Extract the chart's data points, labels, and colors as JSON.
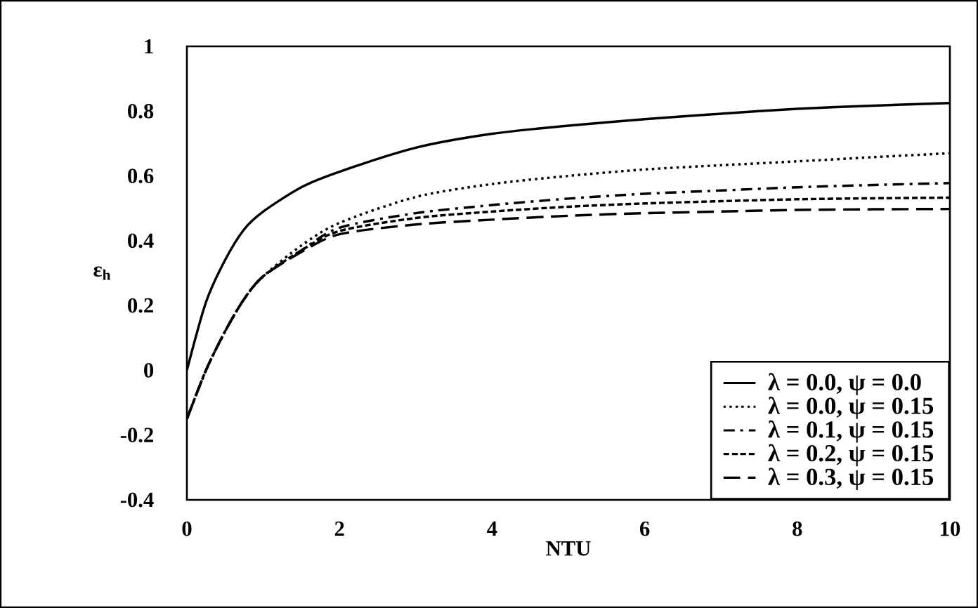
{
  "chart_data": {
    "type": "line",
    "xlabel": "NTU",
    "ylabel": "ε$_{h}$",
    "xlim": [
      0,
      10
    ],
    "ylim": [
      -0.4,
      1
    ],
    "xticks": [
      0,
      2,
      4,
      6,
      8,
      10
    ],
    "yticks": [
      -0.4,
      -0.2,
      0,
      0.2,
      0.4,
      0.6,
      0.8,
      1
    ],
    "legend": "bottom right",
    "grid": false,
    "marker": "none",
    "x": [
      0,
      0.25,
      0.5,
      0.75,
      1,
      1.5,
      2,
      3,
      4,
      5,
      6,
      7,
      8,
      9,
      10
    ],
    "series": [
      {
        "name": "λ = 0.0, ψ = 0.0",
        "color": "#000000",
        "line_style": "solid",
        "values": [
          0,
          0.21,
          0.34,
          0.435,
          0.49,
          0.565,
          0.613,
          0.687,
          0.73,
          0.755,
          0.775,
          0.792,
          0.807,
          0.817,
          0.825
        ]
      },
      {
        "name": "λ = 0.0, ψ = 0.15",
        "color": "#000000",
        "line_style": "dotted",
        "values": [
          -0.15,
          0.0,
          0.12,
          0.22,
          0.29,
          0.385,
          0.455,
          0.535,
          0.575,
          0.6,
          0.62,
          0.633,
          0.645,
          0.658,
          0.67
        ]
      },
      {
        "name": "λ = 0.1, ψ = 0.15",
        "color": "#000000",
        "line_style": "dashdot",
        "values": [
          -0.15,
          0.0,
          0.12,
          0.22,
          0.29,
          0.37,
          0.44,
          0.485,
          0.51,
          0.53,
          0.545,
          0.555,
          0.565,
          0.572,
          0.578
        ]
      },
      {
        "name": "λ = 0.2, ψ = 0.15",
        "color": "#000000",
        "line_style": "dashed",
        "values": [
          -0.15,
          0.0,
          0.12,
          0.22,
          0.29,
          0.37,
          0.43,
          0.47,
          0.49,
          0.505,
          0.515,
          0.522,
          0.528,
          0.531,
          0.533
        ]
      },
      {
        "name": "λ = 0.3, ψ = 0.15",
        "color": "#000000",
        "line_style": "longdashed",
        "values": [
          -0.15,
          0.0,
          0.12,
          0.22,
          0.29,
          0.365,
          0.42,
          0.45,
          0.465,
          0.477,
          0.485,
          0.49,
          0.495,
          0.497,
          0.498
        ]
      }
    ]
  }
}
